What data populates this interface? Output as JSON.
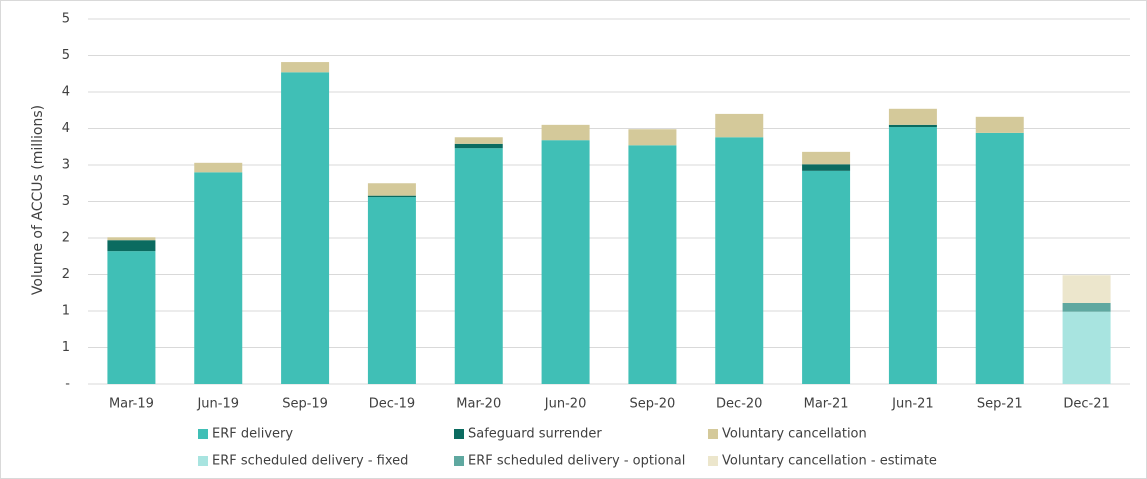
{
  "chart_data": {
    "type": "stacked_bar",
    "y_label": "Volume of ACCUs (millions)",
    "categories": [
      "Mar-19",
      "Jun-19",
      "Sep-19",
      "Dec-19",
      "Mar-20",
      "Jun-20",
      "Sep-20",
      "Dec-20",
      "Mar-21",
      "Jun-21",
      "Sep-21",
      "Dec-21"
    ],
    "series": [
      {
        "name": "ERF delivery",
        "color": "#40bfb6",
        "values": [
          1.82,
          2.9,
          4.27,
          2.56,
          3.23,
          3.34,
          3.27,
          3.38,
          2.92,
          3.52,
          3.44,
          null
        ]
      },
      {
        "name": "Safeguard surrender",
        "color": "#0b6b60",
        "values": [
          0.15,
          null,
          null,
          0.02,
          0.06,
          null,
          null,
          null,
          0.09,
          0.03,
          null,
          null
        ]
      },
      {
        "name": "Voluntary cancellation",
        "color": "#d4c99a",
        "values": [
          0.04,
          0.13,
          0.14,
          0.17,
          0.09,
          0.21,
          0.22,
          0.32,
          0.17,
          0.22,
          0.22,
          null
        ]
      },
      {
        "name": "ERF scheduled delivery - fixed",
        "color": "#a8e4e0",
        "values": [
          null,
          null,
          null,
          null,
          null,
          null,
          null,
          null,
          null,
          null,
          null,
          0.99
        ]
      },
      {
        "name": "ERF scheduled delivery - optional",
        "color": "#5fa8a0",
        "values": [
          null,
          null,
          null,
          null,
          null,
          null,
          null,
          null,
          null,
          null,
          null,
          0.12
        ]
      },
      {
        "name": "Voluntary cancellation - estimate",
        "color": "#ece6cc",
        "values": [
          null,
          null,
          null,
          null,
          null,
          null,
          null,
          null,
          null,
          null,
          null,
          0.38
        ]
      }
    ],
    "ylim": [
      0,
      5
    ],
    "yticks": [
      {
        "value": 0,
        "label": "-"
      },
      {
        "value": 0.5,
        "label": "1"
      },
      1,
      {
        "value": 1.5,
        "label": "2"
      },
      2,
      {
        "value": 2.5,
        "label": "3"
      },
      3,
      {
        "value": 3.5,
        "label": "4"
      },
      4,
      {
        "value": 4.5,
        "label": "5"
      },
      5
    ],
    "grid": true,
    "legend": "bottom"
  }
}
